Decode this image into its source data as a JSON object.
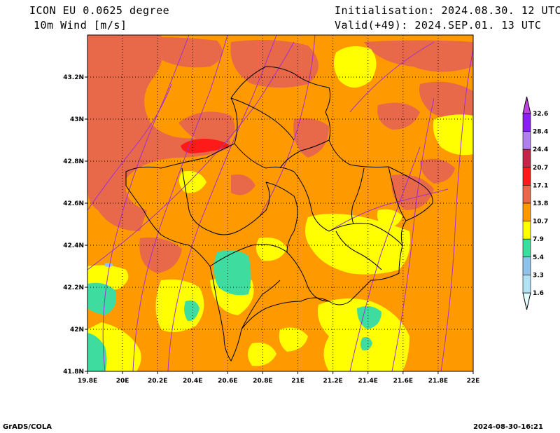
{
  "header": {
    "model": "ICON EU 0.0625 degree",
    "field": "10m Wind [m/s]",
    "init": "Initialisation: 2024.08.30. 12 UTC",
    "valid": "Valid(+49): 2024.SEP.01. 13 UTC"
  },
  "footer": {
    "left": "GrADS/COLA",
    "right": "2024-08-30-16:21"
  },
  "map": {
    "lon_range": [
      19.8,
      22.0
    ],
    "lat_range": [
      41.8,
      43.4
    ],
    "lon_ticks": [
      "19.8E",
      "20E",
      "20.2E",
      "20.4E",
      "20.6E",
      "20.8E",
      "21E",
      "21.2E",
      "21.4E",
      "21.6E",
      "21.8E",
      "22E"
    ],
    "lat_ticks": [
      "41.8N",
      "42N",
      "42.2N",
      "42.4N",
      "42.6N",
      "42.8N",
      "43N",
      "43.2N"
    ],
    "grid": "dotted"
  },
  "legend": {
    "levels": [
      "1.6",
      "3.3",
      "5.4",
      "7.9",
      "10.7",
      "13.8",
      "17.1",
      "20.7",
      "24.4",
      "28.4",
      "32.6"
    ],
    "colors": [
      "#e6ffff",
      "#b3e1f4",
      "#8fc3eb",
      "#3fdc9f",
      "#ffff00",
      "#ff9900",
      "#e8684a",
      "#ff1a1a",
      "#c0284a",
      "#b080ee",
      "#8a1ef0",
      "#c040e0"
    ]
  }
}
